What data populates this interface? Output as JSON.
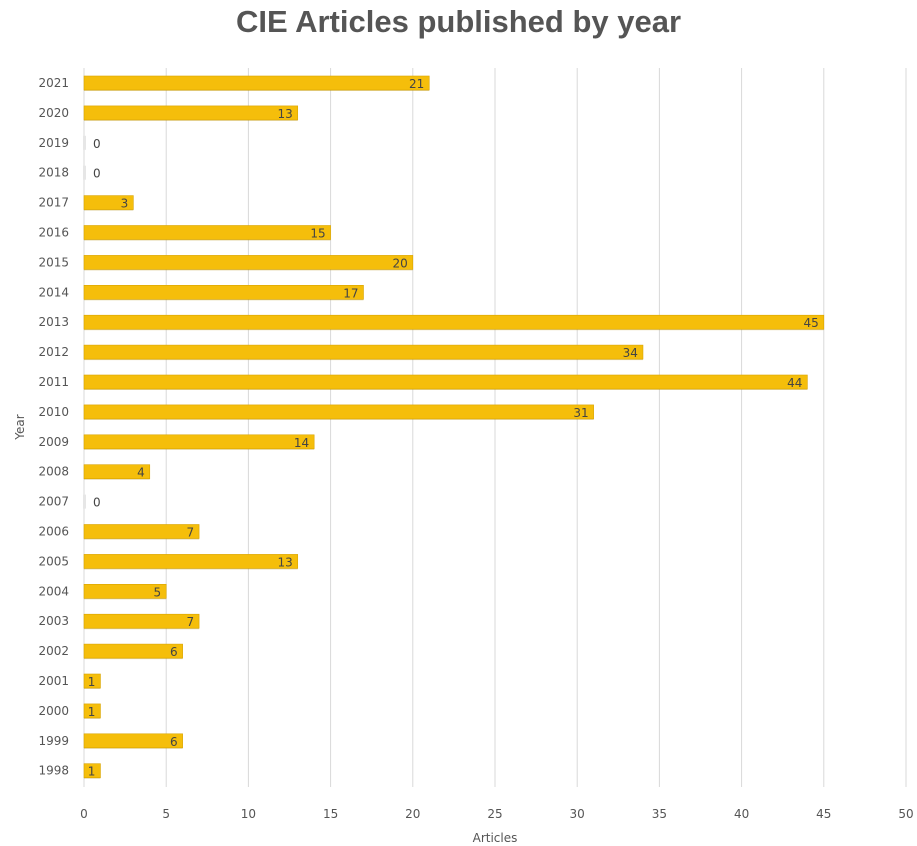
{
  "chart_data": {
    "type": "bar",
    "orientation": "horizontal",
    "title": "CIE Articles published by year",
    "xlabel": "Articles",
    "ylabel": "Year",
    "xlim": [
      0,
      50
    ],
    "xticks": [
      0,
      5,
      10,
      15,
      20,
      25,
      30,
      35,
      40,
      45,
      50
    ],
    "categories": [
      "2021",
      "2020",
      "2019",
      "2018",
      "2017",
      "2016",
      "2015",
      "2014",
      "2013",
      "2012",
      "2011",
      "2010",
      "2009",
      "2008",
      "2007",
      "2006",
      "2005",
      "2004",
      "2003",
      "2002",
      "2001",
      "2000",
      "1999",
      "1998"
    ],
    "values": [
      21,
      13,
      0,
      0,
      3,
      15,
      20,
      17,
      45,
      34,
      44,
      31,
      14,
      4,
      0,
      7,
      13,
      5,
      7,
      6,
      1,
      1,
      6,
      1
    ],
    "grid": "vertical",
    "colors": {
      "bar": "#F5BE0B",
      "bar_edge": "#D9A400",
      "grid": "#D9D9D9"
    }
  }
}
